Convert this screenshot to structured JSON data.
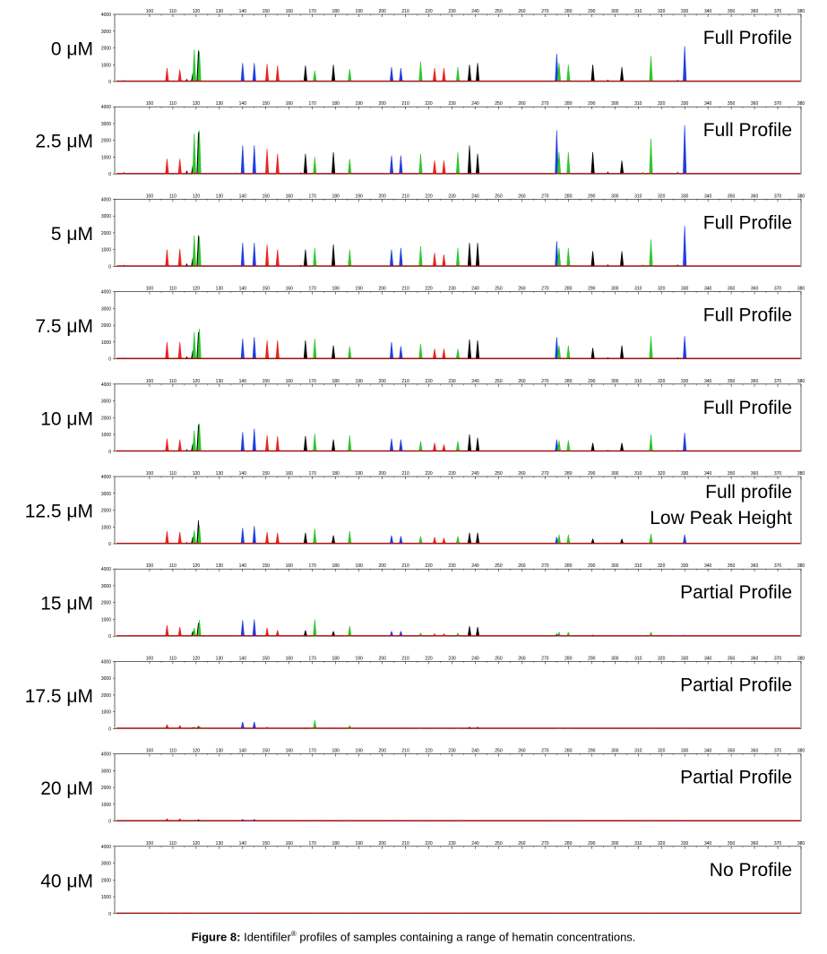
{
  "caption": {
    "label": "Figure 8:",
    "text_before": " Identifiler",
    "registered": "®",
    "text_after": " profiles of samples containing a range of hematin concentrations."
  },
  "chart_data": {
    "type": "electropherogram",
    "x_range": [
      85,
      380
    ],
    "x_ticks": [
      100,
      110,
      120,
      130,
      140,
      150,
      160,
      170,
      180,
      190,
      200,
      210,
      220,
      230,
      240,
      250,
      260,
      270,
      280,
      290,
      300,
      310,
      320,
      330,
      340,
      350,
      360,
      370,
      380
    ],
    "y_range": [
      0,
      4000
    ],
    "y_ticks": [
      0,
      1000,
      2000,
      3000,
      4000
    ],
    "colors": {
      "red": "#e8251e",
      "blue": "#1f3fe0",
      "green": "#2fc62f",
      "black": "#000000"
    },
    "baseline_color": "#cc0000",
    "loci": [
      {
        "x": 107.5,
        "color": "red"
      },
      {
        "x": 113,
        "color": "red"
      },
      {
        "x": 118.6,
        "color": "black"
      },
      {
        "x": 119.2,
        "color": "green"
      },
      {
        "x": 121,
        "color": "black"
      },
      {
        "x": 121.4,
        "color": "green"
      },
      {
        "x": 140,
        "color": "blue"
      },
      {
        "x": 145,
        "color": "blue"
      },
      {
        "x": 150.5,
        "color": "red"
      },
      {
        "x": 155,
        "color": "red"
      },
      {
        "x": 167,
        "color": "black"
      },
      {
        "x": 171,
        "color": "green"
      },
      {
        "x": 179,
        "color": "black"
      },
      {
        "x": 186,
        "color": "green"
      },
      {
        "x": 204,
        "color": "blue"
      },
      {
        "x": 208,
        "color": "blue"
      },
      {
        "x": 216.5,
        "color": "green"
      },
      {
        "x": 222.5,
        "color": "red"
      },
      {
        "x": 226.5,
        "color": "red"
      },
      {
        "x": 232.5,
        "color": "green"
      },
      {
        "x": 237.5,
        "color": "black"
      },
      {
        "x": 241,
        "color": "black"
      },
      {
        "x": 275,
        "color": "blue"
      },
      {
        "x": 276,
        "color": "green"
      },
      {
        "x": 280,
        "color": "green"
      },
      {
        "x": 290.5,
        "color": "black"
      },
      {
        "x": 303,
        "color": "black"
      },
      {
        "x": 315.5,
        "color": "green"
      },
      {
        "x": 330,
        "color": "blue"
      }
    ],
    "small_peaks": [
      {
        "x": 89,
        "color": "blue",
        "h": 80
      },
      {
        "x": 116,
        "color": "black",
        "h": 150
      },
      {
        "x": 137,
        "color": "blue",
        "h": 60
      },
      {
        "x": 165,
        "color": "black",
        "h": 70
      },
      {
        "x": 297,
        "color": "black",
        "h": 100
      },
      {
        "x": 312,
        "color": "green",
        "h": 90
      },
      {
        "x": 327,
        "color": "blue",
        "h": 100
      }
    ],
    "panels": [
      {
        "concentration": "0 μM",
        "status": [
          "Full Profile"
        ],
        "heights": [
          800,
          700,
          500,
          1900,
          1850,
          1800,
          1100,
          1100,
          1050,
          950,
          950,
          650,
          1000,
          750,
          850,
          800,
          1200,
          800,
          800,
          850,
          1000,
          1100,
          1650,
          1100,
          1000,
          1000,
          850,
          1500,
          2100
        ]
      },
      {
        "concentration": "2.5 μM",
        "status": [
          "Full Profile"
        ],
        "heights": [
          900,
          900,
          500,
          2400,
          2500,
          2600,
          1700,
          1700,
          1500,
          1200,
          1200,
          1000,
          1300,
          900,
          1100,
          1100,
          1200,
          800,
          800,
          1300,
          1700,
          1200,
          2600,
          1300,
          1300,
          1300,
          800,
          2100,
          2900
        ]
      },
      {
        "concentration": "5 μM",
        "status": [
          "Full Profile"
        ],
        "heights": [
          1000,
          1050,
          500,
          1850,
          1850,
          1800,
          1400,
          1400,
          1300,
          1000,
          1000,
          1100,
          1300,
          1000,
          1000,
          1100,
          1200,
          800,
          700,
          1100,
          1400,
          1400,
          1500,
          1100,
          1100,
          900,
          900,
          1600,
          2400
        ]
      },
      {
        "concentration": "7.5 μM",
        "status": [
          "Full Profile"
        ],
        "heights": [
          1000,
          1000,
          500,
          1600,
          1600,
          1800,
          1200,
          1300,
          1100,
          1100,
          1100,
          1200,
          800,
          750,
          1000,
          750,
          900,
          600,
          600,
          600,
          1150,
          1100,
          1300,
          800,
          800,
          650,
          800,
          1350,
          1350
        ]
      },
      {
        "concentration": "10 μM",
        "status": [
          "Full Profile"
        ],
        "heights": [
          750,
          700,
          450,
          1250,
          1600,
          1650,
          1150,
          1350,
          950,
          900,
          900,
          1050,
          700,
          950,
          750,
          700,
          600,
          500,
          400,
          600,
          1000,
          800,
          700,
          650,
          650,
          500,
          500,
          1000,
          1100
        ]
      },
      {
        "concentration": "12.5 μM",
        "status": [
          "Full profile",
          "Low Peak Height"
        ],
        "heights": [
          750,
          700,
          400,
          800,
          1400,
          1100,
          950,
          1050,
          700,
          650,
          650,
          900,
          500,
          750,
          500,
          450,
          450,
          400,
          350,
          450,
          650,
          650,
          400,
          550,
          550,
          300,
          300,
          600,
          550
        ]
      },
      {
        "concentration": "15 μM",
        "status": [
          "Partial Profile"
        ],
        "heights": [
          650,
          550,
          300,
          500,
          800,
          950,
          950,
          1000,
          500,
          350,
          350,
          1000,
          300,
          600,
          300,
          300,
          200,
          150,
          150,
          200,
          600,
          550,
          150,
          250,
          250,
          80,
          60,
          250,
          80
        ]
      },
      {
        "concentration": "17.5 μM",
        "status": [
          "Partial Profile"
        ],
        "heights": [
          250,
          200,
          80,
          100,
          150,
          150,
          400,
          400,
          100,
          60,
          60,
          500,
          60,
          200,
          60,
          60,
          60,
          40,
          40,
          60,
          100,
          100,
          40,
          60,
          60,
          40,
          40,
          60,
          40
        ]
      },
      {
        "concentration": "20 μM",
        "status": [
          "Partial Profile"
        ],
        "heights": [
          150,
          150,
          50,
          80,
          100,
          80,
          120,
          120,
          60,
          50,
          50,
          80,
          30,
          30,
          30,
          30,
          30,
          20,
          20,
          30,
          30,
          30,
          20,
          20,
          20,
          20,
          20,
          20,
          20
        ]
      },
      {
        "concentration": "40 μM",
        "status": [
          "No Profile"
        ],
        "heights": [
          20,
          20,
          10,
          20,
          20,
          20,
          20,
          20,
          10,
          10,
          10,
          20,
          10,
          10,
          10,
          10,
          10,
          10,
          10,
          10,
          10,
          10,
          10,
          10,
          10,
          10,
          10,
          10,
          10
        ]
      }
    ]
  }
}
